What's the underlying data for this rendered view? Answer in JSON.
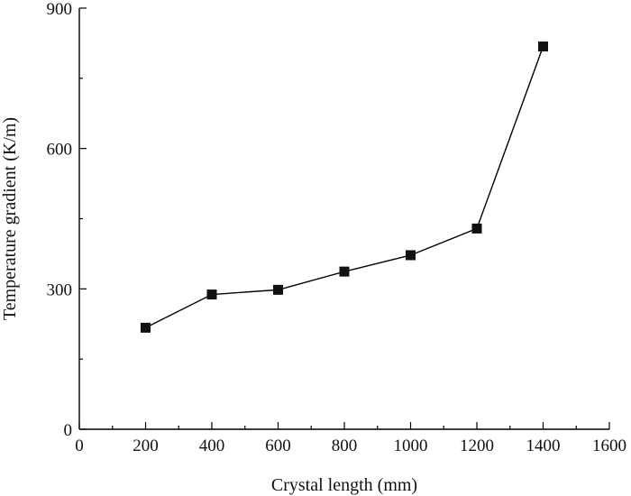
{
  "chart_data": {
    "type": "line",
    "xlabel": "Crystal length (mm)",
    "ylabel": "Temperature gradient (K/m)",
    "xlim": [
      0,
      1600
    ],
    "ylim": [
      0,
      900
    ],
    "x_ticks": [
      0,
      200,
      400,
      600,
      800,
      1000,
      1200,
      1400,
      1600
    ],
    "y_ticks": [
      0,
      300,
      600,
      900
    ],
    "grid": false,
    "marker": "square",
    "series": [
      {
        "x": [
          200,
          400,
          600,
          800,
          1000,
          1200,
          1400
        ],
        "y": [
          217,
          288,
          298,
          337,
          372,
          429,
          818
        ]
      }
    ]
  }
}
